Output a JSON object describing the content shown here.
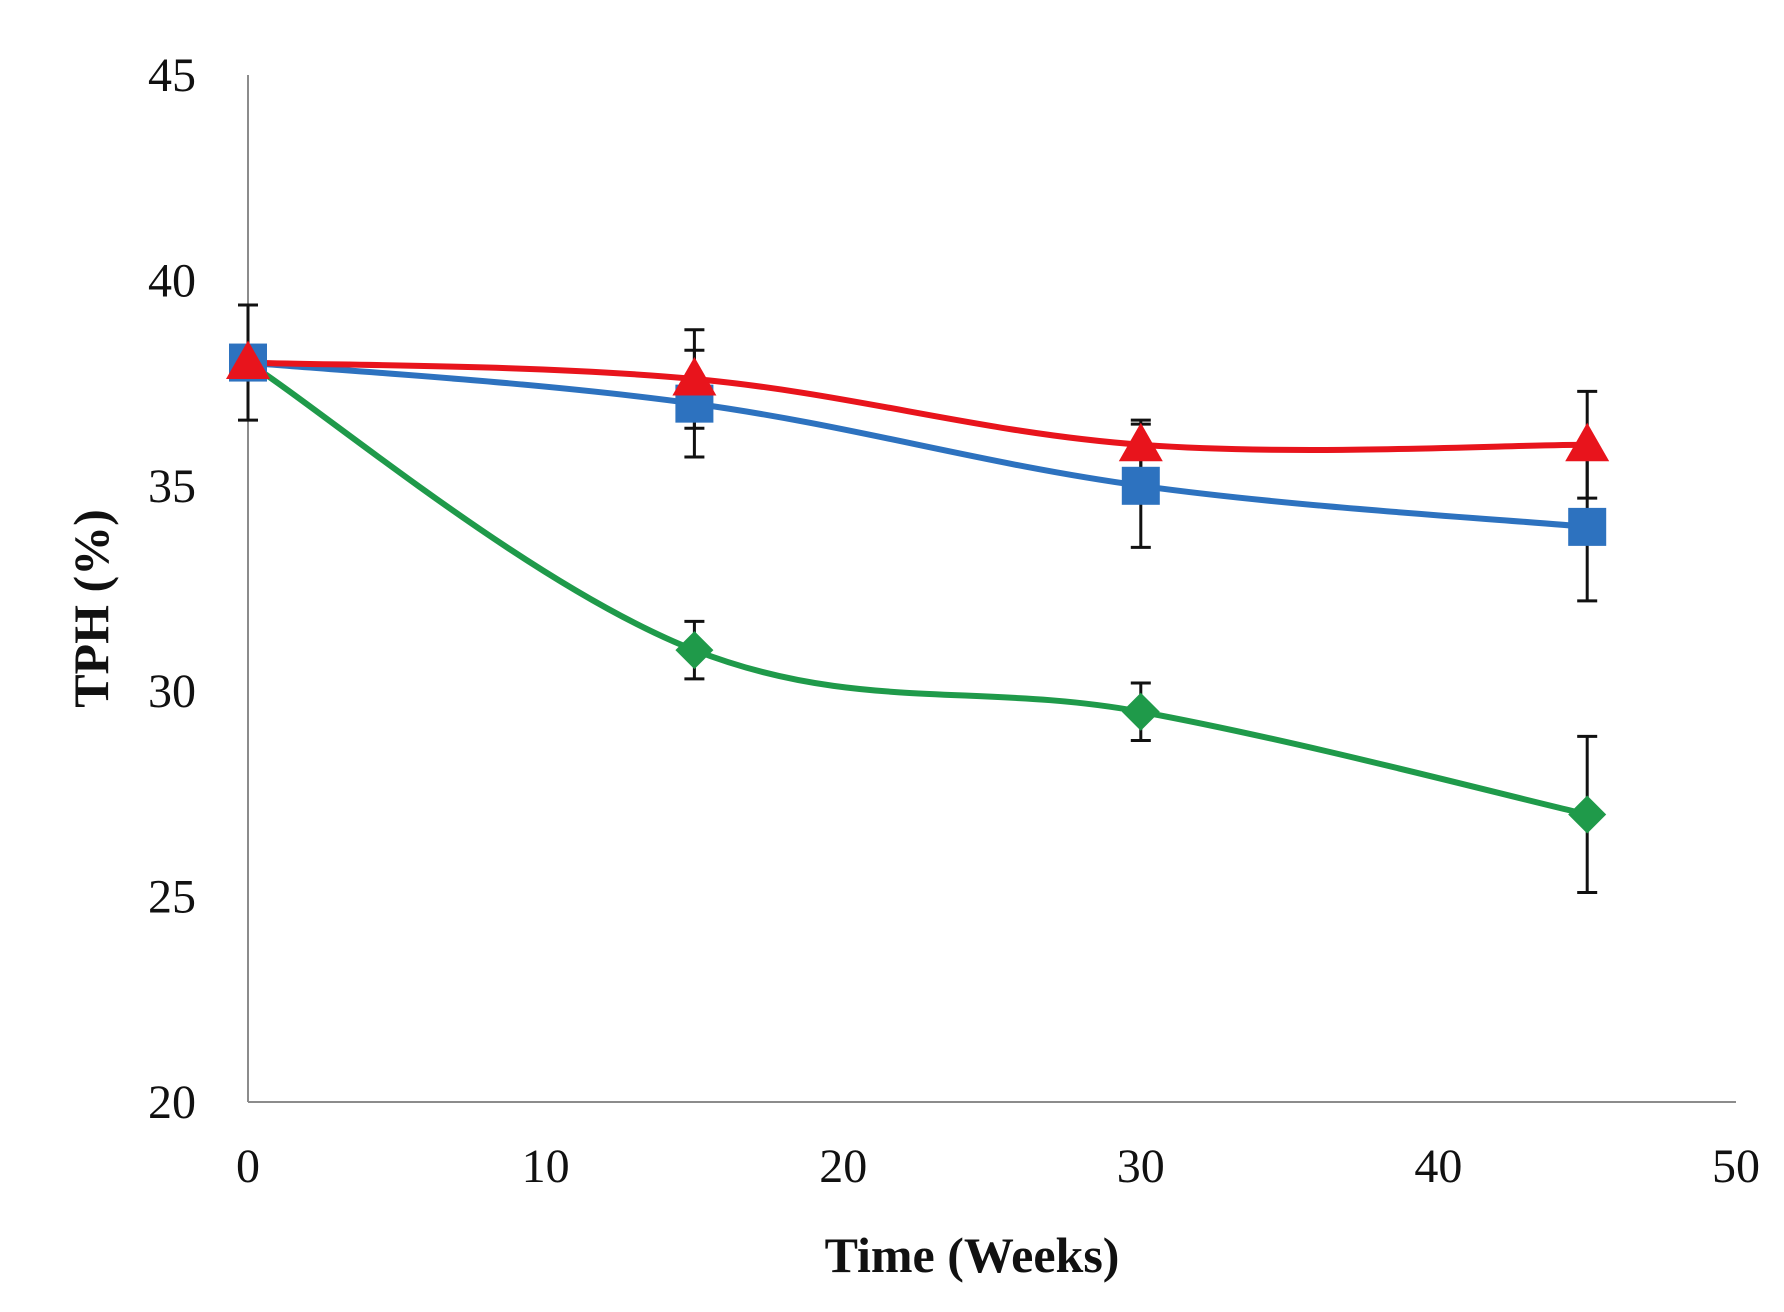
{
  "chart_data": {
    "type": "line",
    "title": "",
    "xlabel": "Time (Weeks)",
    "ylabel": "TPH (%)",
    "xlim": [
      0,
      50
    ],
    "ylim": [
      20,
      45
    ],
    "x_ticks": [
      0,
      10,
      20,
      30,
      40,
      50
    ],
    "y_ticks": [
      20,
      25,
      30,
      35,
      40,
      45
    ],
    "grid": false,
    "legend": null,
    "smooth": true,
    "series": [
      {
        "name": "diamond-series",
        "color": "#1f9a4a",
        "marker": "diamond",
        "x": [
          0,
          15,
          30,
          45
        ],
        "values": [
          38,
          31,
          29.5,
          27
        ],
        "error": [
          1.4,
          0.7,
          0.7,
          1.9
        ]
      },
      {
        "name": "square-series",
        "color": "#2d72bf",
        "marker": "square",
        "x": [
          0,
          15,
          30,
          45
        ],
        "values": [
          38,
          37,
          35,
          34
        ],
        "error": [
          0,
          1.3,
          1.5,
          1.8
        ]
      },
      {
        "name": "triangle-series",
        "color": "#e8141c",
        "marker": "triangle",
        "x": [
          0,
          15,
          30,
          45
        ],
        "values": [
          38,
          37.6,
          36,
          36
        ],
        "error": [
          0,
          1.2,
          0.6,
          1.3
        ]
      }
    ]
  }
}
